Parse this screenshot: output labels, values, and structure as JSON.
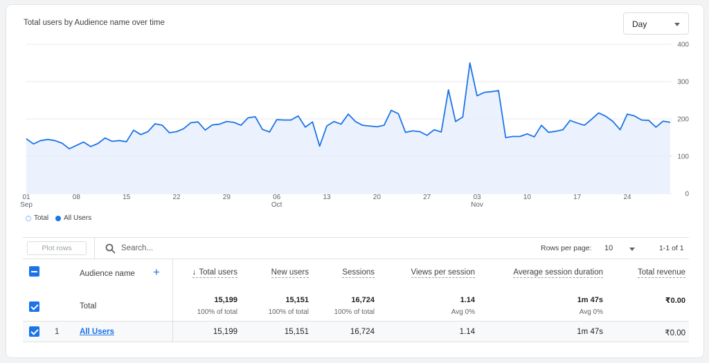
{
  "card": {
    "title": "Total users by Audience name over time"
  },
  "granularity": {
    "selected": "Day"
  },
  "legend": [
    {
      "label": "Total"
    },
    {
      "label": "All Users"
    }
  ],
  "colors": {
    "accent": "#1a73e8",
    "area_fill": "#e8f0fe",
    "grid": "#e8eaed"
  },
  "chart_data": {
    "type": "area",
    "title": "Total users by Audience name over time",
    "xlabel": "",
    "ylabel": "",
    "ylim": [
      0,
      400
    ],
    "yticks": [
      0,
      100,
      200,
      300,
      400
    ],
    "grid": true,
    "legend_position": "bottom-left",
    "x_start_date": "2023-09-01",
    "x_tick_labels": [
      {
        "day": 1,
        "label": "01",
        "sublabel": "Sep"
      },
      {
        "day": 8,
        "label": "08",
        "sublabel": ""
      },
      {
        "day": 15,
        "label": "15",
        "sublabel": ""
      },
      {
        "day": 22,
        "label": "22",
        "sublabel": ""
      },
      {
        "day": 29,
        "label": "29",
        "sublabel": ""
      },
      {
        "day": 36,
        "label": "06",
        "sublabel": "Oct"
      },
      {
        "day": 43,
        "label": "13",
        "sublabel": ""
      },
      {
        "day": 50,
        "label": "20",
        "sublabel": ""
      },
      {
        "day": 57,
        "label": "27",
        "sublabel": ""
      },
      {
        "day": 64,
        "label": "03",
        "sublabel": "Nov"
      },
      {
        "day": 71,
        "label": "10",
        "sublabel": ""
      },
      {
        "day": 78,
        "label": "17",
        "sublabel": ""
      },
      {
        "day": 85,
        "label": "24",
        "sublabel": ""
      }
    ],
    "series": [
      {
        "name": "All Users",
        "values": [
          147,
          133,
          142,
          145,
          142,
          135,
          120,
          129,
          138,
          126,
          134,
          149,
          140,
          142,
          139,
          170,
          158,
          166,
          187,
          183,
          163,
          166,
          174,
          190,
          192,
          170,
          184,
          186,
          193,
          191,
          183,
          203,
          206,
          172,
          165,
          198,
          197,
          197,
          208,
          178,
          192,
          127,
          181,
          193,
          186,
          213,
          193,
          183,
          181,
          179,
          183,
          223,
          214,
          164,
          168,
          166,
          156,
          171,
          165,
          278,
          193,
          205,
          350,
          262,
          271,
          273,
          276,
          150,
          153,
          153,
          160,
          152,
          183,
          164,
          167,
          171,
          196,
          189,
          183,
          199,
          216,
          207,
          193,
          171,
          213,
          208,
          197,
          196,
          178,
          194,
          191
        ]
      }
    ]
  },
  "toolbar": {
    "plot_rows_label": "Plot rows",
    "search_placeholder": "Search...",
    "rows_per_page_label": "Rows per page:",
    "rows_per_page_value": "10",
    "pagination": "1-1 of 1"
  },
  "table": {
    "columns": [
      {
        "key": "audience",
        "label": "Audience name"
      },
      {
        "key": "total_users",
        "label": "Total users"
      },
      {
        "key": "new_users",
        "label": "New users"
      },
      {
        "key": "sessions",
        "label": "Sessions"
      },
      {
        "key": "views_per_session",
        "label": "Views per session"
      },
      {
        "key": "avg_session_duration",
        "label": "Average session duration"
      },
      {
        "key": "total_revenue",
        "label": "Total revenue"
      }
    ],
    "total_row": {
      "label": "Total",
      "total_users": "15,199",
      "total_users_sub": "100% of total",
      "new_users": "15,151",
      "new_users_sub": "100% of total",
      "sessions": "16,724",
      "sessions_sub": "100% of total",
      "views_per_session": "1.14",
      "views_per_session_sub": "Avg 0%",
      "avg_session_duration": "1m 47s",
      "avg_session_duration_sub": "Avg 0%",
      "total_revenue": "₹0.00"
    },
    "rows": [
      {
        "index": "1",
        "audience": "All Users",
        "total_users": "15,199",
        "new_users": "15,151",
        "sessions": "16,724",
        "views_per_session": "1.14",
        "avg_session_duration": "1m 47s",
        "total_revenue": "₹0.00"
      }
    ]
  }
}
